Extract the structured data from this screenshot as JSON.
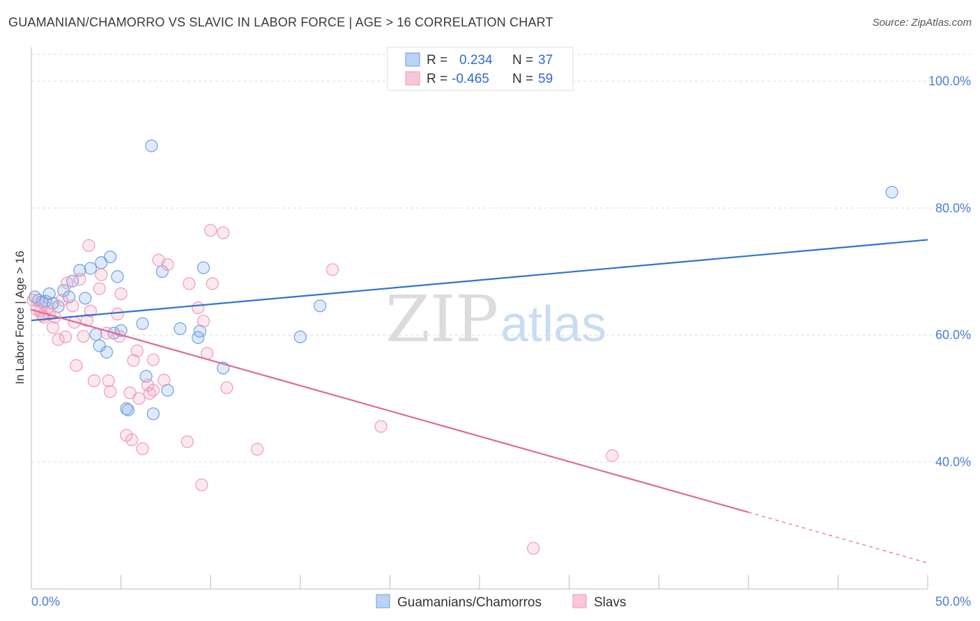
{
  "title": "GUAMANIAN/CHAMORRO VS SLAVIC IN LABOR FORCE | AGE > 16 CORRELATION CHART",
  "source": "Source: ZipAtlas.com",
  "watermark": {
    "zip": "ZIP",
    "atlas": "atlas"
  },
  "legend_top": [
    {
      "r_label": "R =",
      "r_value": "0.234",
      "n_label": "N =",
      "n_value": "37"
    },
    {
      "r_label": "R =",
      "r_value": "-0.465",
      "n_label": "N =",
      "n_value": "59"
    }
  ],
  "legend_bottom": [
    "Guamanians/Chamorros",
    "Slavs"
  ],
  "chart_data": {
    "type": "scatter",
    "ylabel": "In Labor Force | Age > 16",
    "xlim": [
      0,
      50
    ],
    "ylim": [
      20,
      104
    ],
    "x_tick_labels": [
      "0.0%",
      "50.0%"
    ],
    "y_tick_values": [
      100,
      80,
      60,
      40
    ],
    "y_tick_labels": [
      "100.0%",
      "80.0%",
      "60.0%",
      "40.0%"
    ],
    "grid": true,
    "colors": {
      "blue": "#6fa0e6",
      "pink": "#f09ab8",
      "blue_line": "#2f72d0",
      "pink_line": "#e0689a",
      "tick_text": "#4a7fd1"
    },
    "series": [
      {
        "name": "Guamanians/Chamorros",
        "color": "#6fa0e6",
        "points": [
          [
            0.2,
            66
          ],
          [
            0.4,
            65.5
          ],
          [
            0.6,
            65.2
          ],
          [
            0.8,
            65.3
          ],
          [
            1.0,
            66.5
          ],
          [
            1.2,
            65.0
          ],
          [
            1.5,
            64.5
          ],
          [
            1.8,
            67
          ],
          [
            2.1,
            66.0
          ],
          [
            2.3,
            68.5
          ],
          [
            2.7,
            70.2
          ],
          [
            3.0,
            65.8
          ],
          [
            3.3,
            70.5
          ],
          [
            3.6,
            60.1
          ],
          [
            3.8,
            58.3
          ],
          [
            3.9,
            71.4
          ],
          [
            4.2,
            57.3
          ],
          [
            4.4,
            72.3
          ],
          [
            4.6,
            60.3
          ],
          [
            4.8,
            69.2
          ],
          [
            5.0,
            60.7
          ],
          [
            5.3,
            48.4
          ],
          [
            5.4,
            48.2
          ],
          [
            6.2,
            61.8
          ],
          [
            6.4,
            53.5
          ],
          [
            6.7,
            89.8
          ],
          [
            6.8,
            47.6
          ],
          [
            7.3,
            70.0
          ],
          [
            7.6,
            51.3
          ],
          [
            8.3,
            61.0
          ],
          [
            9.3,
            59.6
          ],
          [
            9.4,
            60.6
          ],
          [
            9.6,
            70.6
          ],
          [
            10.7,
            54.8
          ],
          [
            15.0,
            59.7
          ],
          [
            16.1,
            64.6
          ],
          [
            48.0,
            82.5
          ]
        ]
      },
      {
        "name": "Slavs",
        "color": "#f09ab8",
        "points": [
          [
            0.3,
            64.0
          ],
          [
            0.5,
            63.8
          ],
          [
            0.7,
            62.8
          ],
          [
            0.9,
            64.3
          ],
          [
            1.0,
            63.3
          ],
          [
            1.2,
            61.2
          ],
          [
            1.5,
            59.3
          ],
          [
            1.7,
            65.5
          ],
          [
            1.9,
            59.7
          ],
          [
            2.0,
            68.2
          ],
          [
            2.3,
            64.6
          ],
          [
            2.4,
            62.0
          ],
          [
            2.5,
            55.2
          ],
          [
            2.7,
            68.8
          ],
          [
            2.9,
            59.8
          ],
          [
            3.1,
            62.3
          ],
          [
            3.2,
            74.1
          ],
          [
            3.3,
            63.8
          ],
          [
            3.5,
            52.8
          ],
          [
            3.8,
            67.3
          ],
          [
            3.9,
            69.5
          ],
          [
            4.2,
            60.3
          ],
          [
            4.3,
            52.8
          ],
          [
            4.4,
            51.1
          ],
          [
            4.8,
            63.3
          ],
          [
            4.9,
            59.8
          ],
          [
            5.0,
            66.5
          ],
          [
            5.3,
            44.2
          ],
          [
            5.5,
            50.9
          ],
          [
            5.6,
            43.5
          ],
          [
            5.7,
            56.0
          ],
          [
            5.9,
            57.5
          ],
          [
            6.0,
            50.0
          ],
          [
            6.2,
            42.1
          ],
          [
            6.5,
            52.1
          ],
          [
            6.6,
            50.8
          ],
          [
            6.8,
            56.1
          ],
          [
            6.8,
            51.3
          ],
          [
            7.1,
            71.8
          ],
          [
            7.4,
            52.9
          ],
          [
            7.6,
            71.1
          ],
          [
            8.7,
            43.2
          ],
          [
            8.8,
            68.1
          ],
          [
            9.3,
            64.3
          ],
          [
            9.5,
            36.4
          ],
          [
            9.6,
            62.2
          ],
          [
            9.8,
            57.1
          ],
          [
            10.0,
            76.5
          ],
          [
            10.1,
            68.1
          ],
          [
            10.7,
            76.1
          ],
          [
            10.9,
            51.7
          ],
          [
            12.6,
            42.0
          ],
          [
            16.8,
            70.3
          ],
          [
            19.5,
            45.6
          ],
          [
            28.0,
            26.4
          ],
          [
            32.4,
            41.0
          ],
          [
            0.1,
            65.5
          ],
          [
            1.3,
            62.8
          ],
          [
            0.6,
            63.1
          ]
        ]
      }
    ],
    "trend_lines": [
      {
        "series": "Guamanians/Chamorros",
        "x0": 0,
        "y0": 62.3,
        "x1": 50,
        "y1": 75.0,
        "dashed_from": null
      },
      {
        "series": "Slavs",
        "x0": 0,
        "y0": 64.0,
        "x1": 50,
        "y1": 24.1,
        "dashed_from": 40
      }
    ]
  }
}
